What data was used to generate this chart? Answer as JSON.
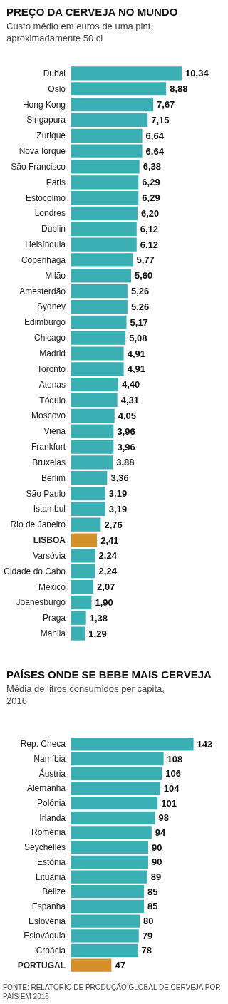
{
  "chart_data": [
    {
      "type": "bar",
      "orientation": "horizontal",
      "title": "PREÇO DA CERVEJA NO MUNDO",
      "subtitle": "Custo médio em euros de uma pint, aproximadamente 50 cl",
      "categories": [
        "Dubai",
        "Oslo",
        "Hong Kong",
        "Singapura",
        "Zurique",
        "Nova Iorque",
        "São Francisco",
        "Paris",
        "Estocolmo",
        "Londres",
        "Dublin",
        "Helsínquia",
        "Copenhaga",
        "Milão",
        "Amesterdão",
        "Sydney",
        "Edimburgo",
        "Chicago",
        "Madrid",
        "Toronto",
        "Atenas",
        "Tóquio",
        "Moscovo",
        "Viena",
        "Frankfurt",
        "Bruxelas",
        "Berlim",
        "São Paulo",
        "Istambul",
        "Rio de Janeiro",
        "LISBOA",
        "Varsóvia",
        "Cidade do Cabo",
        "México",
        "Joanesburgo",
        "Praga",
        "Manila"
      ],
      "values": [
        10.34,
        8.88,
        7.67,
        7.15,
        6.64,
        6.64,
        6.38,
        6.29,
        6.29,
        6.2,
        6.12,
        6.12,
        5.77,
        5.6,
        5.26,
        5.26,
        5.17,
        5.08,
        4.91,
        4.91,
        4.4,
        4.31,
        4.05,
        3.96,
        3.96,
        3.88,
        3.36,
        3.19,
        3.19,
        2.76,
        2.41,
        2.24,
        2.24,
        2.07,
        1.9,
        1.38,
        1.29
      ],
      "value_labels": [
        "10,34",
        "8,88",
        "7,67",
        "7,15",
        "6,64",
        "6,64",
        "6,38",
        "6,29",
        "6,29",
        "6,20",
        "6,12",
        "6,12",
        "5,77",
        "5,60",
        "5,26",
        "5,26",
        "5,17",
        "5,08",
        "4,91",
        "4,91",
        "4,40",
        "4,31",
        "4,05",
        "3,96",
        "3,96",
        "3,88",
        "3,36",
        "3,19",
        "3,19",
        "2,76",
        "2,41",
        "2,24",
        "2,24",
        "2,07",
        "1,90",
        "1,38",
        "1,29"
      ],
      "colors": [
        "#3ab0b5",
        "#3ab0b5",
        "#3ab0b5",
        "#3ab0b5",
        "#3ab0b5",
        "#3ab0b5",
        "#3ab0b5",
        "#3ab0b5",
        "#3ab0b5",
        "#3ab0b5",
        "#3ab0b5",
        "#3ab0b5",
        "#3ab0b5",
        "#3ab0b5",
        "#3ab0b5",
        "#3ab0b5",
        "#3ab0b5",
        "#3ab0b5",
        "#3ab0b5",
        "#3ab0b5",
        "#3ab0b5",
        "#3ab0b5",
        "#3ab0b5",
        "#3ab0b5",
        "#3ab0b5",
        "#3ab0b5",
        "#3ab0b5",
        "#3ab0b5",
        "#3ab0b5",
        "#3ab0b5",
        "#d4912a",
        "#3ab0b5",
        "#3ab0b5",
        "#3ab0b5",
        "#3ab0b5",
        "#3ab0b5",
        "#3ab0b5"
      ]
    },
    {
      "type": "bar",
      "orientation": "horizontal",
      "title": "PAÍSES ONDE SE BEBE MAIS CERVEJA",
      "subtitle": "Média de litros consumidos per capita, 2016",
      "categories": [
        "Rep. Checa",
        "Namíbia",
        "Áustria",
        "Alemanha",
        "Polónia",
        "Irlanda",
        "Roménia",
        "Seychelles",
        "Estónia",
        "Lituânia",
        "Belize",
        "Espanha",
        "Eslovénia",
        "Eslováquia",
        "Croácia",
        "PORTUGAL"
      ],
      "values": [
        143,
        108,
        106,
        104,
        101,
        98,
        94,
        90,
        90,
        89,
        85,
        85,
        80,
        79,
        78,
        47
      ],
      "colors": [
        "#3ab0b5",
        "#3ab0b5",
        "#3ab0b5",
        "#3ab0b5",
        "#3ab0b5",
        "#3ab0b5",
        "#3ab0b5",
        "#3ab0b5",
        "#3ab0b5",
        "#3ab0b5",
        "#3ab0b5",
        "#3ab0b5",
        "#3ab0b5",
        "#3ab0b5",
        "#3ab0b5",
        "#d4912a"
      ],
      "data_labels": true,
      "annotations": [
        "FONTE: RELATÓRIO DE PRODUÇÃO GLOBAL DE CERVEJA POR PAÍS EM 2016"
      ]
    }
  ]
}
